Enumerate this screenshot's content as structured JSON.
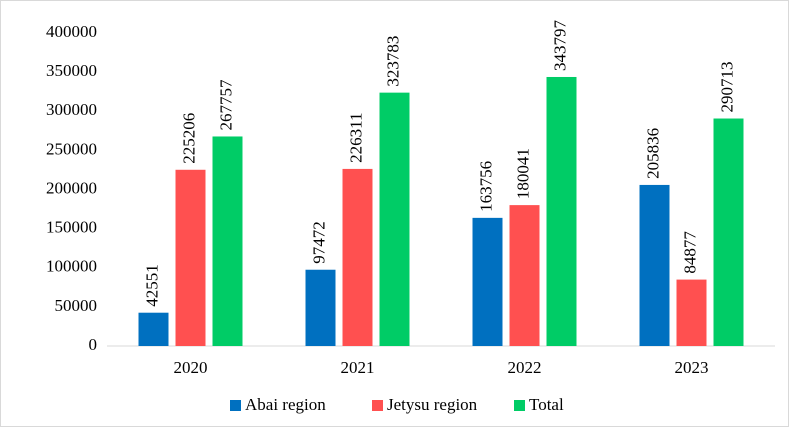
{
  "chart_data": {
    "type": "bar",
    "categories": [
      "2020",
      "2021",
      "2022",
      "2023"
    ],
    "series": [
      {
        "name": "Abai region",
        "color": "#0070c0",
        "values": [
          42551,
          97472,
          163756,
          205836
        ]
      },
      {
        "name": "Jetysu region",
        "color": "#ff5050",
        "values": [
          225206,
          226311,
          180041,
          84877
        ]
      },
      {
        "name": "Total",
        "color": "#00cc66",
        "values": [
          267757,
          323783,
          343797,
          290713
        ]
      }
    ],
    "ylim": [
      0,
      400000
    ],
    "yticks": [
      0,
      50000,
      100000,
      150000,
      200000,
      250000,
      300000,
      350000,
      400000
    ],
    "grid": false,
    "legend": "bottom"
  }
}
